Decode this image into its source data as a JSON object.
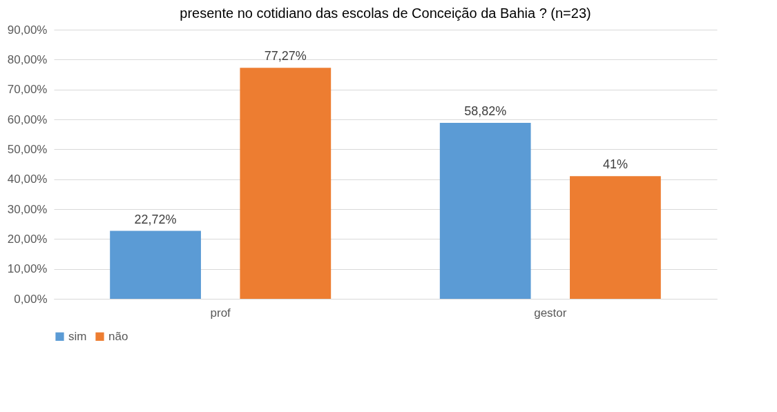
{
  "chart_data": {
    "type": "bar",
    "title": "presente no cotidiano das escolas de Conceição da Bahia ? (n=23)",
    "categories": [
      "prof",
      "gestor"
    ],
    "series": [
      {
        "name": "sim",
        "color": "#5b9bd5",
        "values": [
          22.72,
          58.82
        ],
        "value_labels": [
          "22,72%",
          "58,82%"
        ]
      },
      {
        "name": "não",
        "color": "#ed7d31",
        "values": [
          77.27,
          41
        ],
        "value_labels": [
          "77,27%",
          "41%"
        ]
      }
    ],
    "ylim": [
      0,
      90
    ],
    "yticks": [
      {
        "value": 0,
        "label": "0,00%"
      },
      {
        "value": 10,
        "label": "10,00%"
      },
      {
        "value": 20,
        "label": "20,00%"
      },
      {
        "value": 30,
        "label": "30,00%"
      },
      {
        "value": 40,
        "label": "40,00%"
      },
      {
        "value": 50,
        "label": "50,00%"
      },
      {
        "value": 60,
        "label": "60,00%"
      },
      {
        "value": 70,
        "label": "70,00%"
      },
      {
        "value": 80,
        "label": "80,00%"
      },
      {
        "value": 90,
        "label": "90,00%"
      }
    ],
    "grid": "y",
    "legend": "bottom"
  }
}
